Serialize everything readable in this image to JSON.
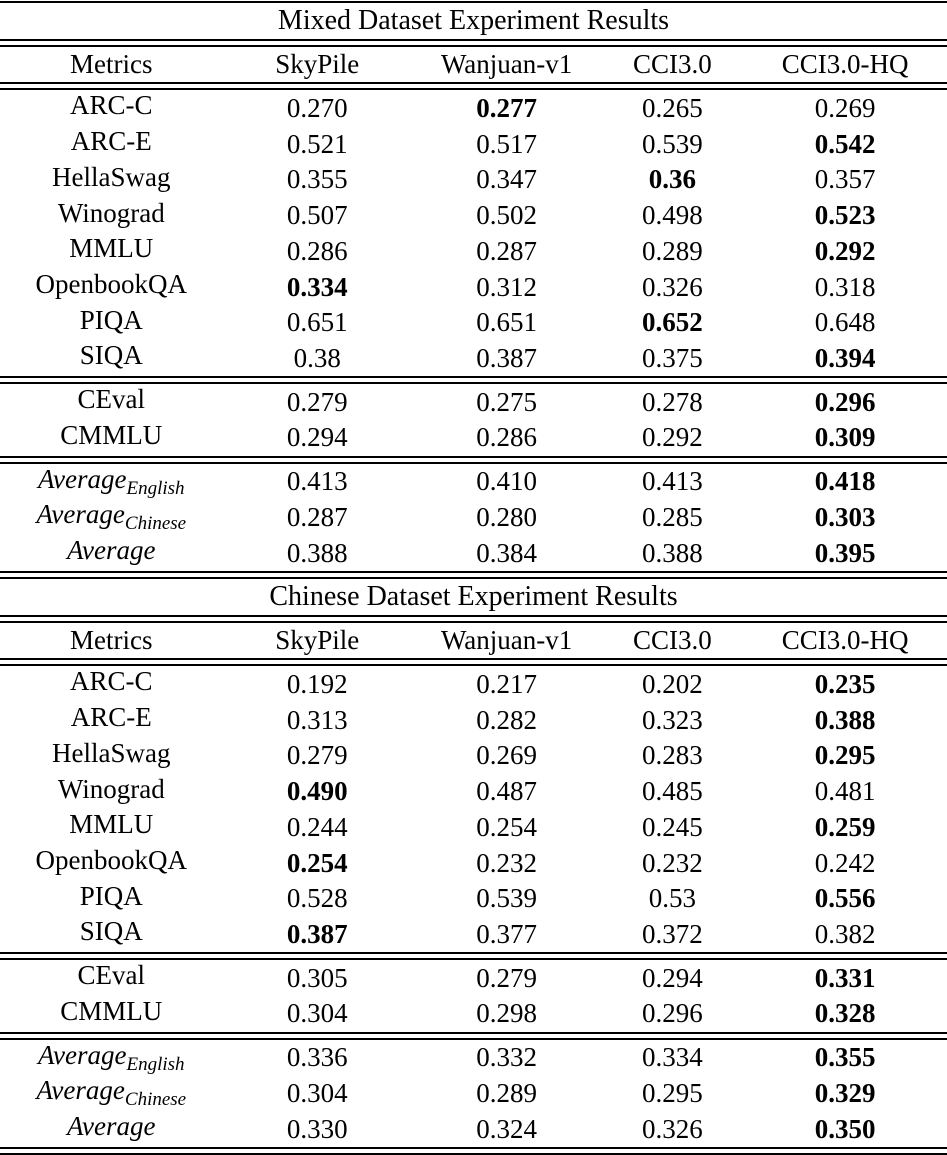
{
  "colors": {
    "text": "#000000",
    "background": "#ffffff",
    "rule": "#000000"
  },
  "tables": [
    {
      "title": "Mixed Dataset Experiment Results",
      "columns": [
        "Metrics",
        "SkyPile",
        "Wanjuan-v1",
        "CCI3.0",
        "CCI3.0-HQ"
      ],
      "groups": [
        {
          "rows": [
            {
              "metric": "ARC-C",
              "values": [
                "0.270",
                "0.277",
                "0.265",
                "0.269"
              ],
              "bold": 1
            },
            {
              "metric": "ARC-E",
              "values": [
                "0.521",
                "0.517",
                "0.539",
                "0.542"
              ],
              "bold": 3
            },
            {
              "metric": "HellaSwag",
              "values": [
                "0.355",
                "0.347",
                "0.36",
                "0.357"
              ],
              "bold": 2
            },
            {
              "metric": "Winograd",
              "values": [
                "0.507",
                "0.502",
                "0.498",
                "0.523"
              ],
              "bold": 3
            },
            {
              "metric": "MMLU",
              "values": [
                "0.286",
                "0.287",
                "0.289",
                "0.292"
              ],
              "bold": 3
            },
            {
              "metric": "OpenbookQA",
              "values": [
                "0.334",
                "0.312",
                "0.326",
                "0.318"
              ],
              "bold": 0
            },
            {
              "metric": "PIQA",
              "values": [
                "0.651",
                "0.651",
                "0.652",
                "0.648"
              ],
              "bold": 2
            },
            {
              "metric": "SIQA",
              "values": [
                "0.38",
                "0.387",
                "0.375",
                "0.394"
              ],
              "bold": 3
            }
          ]
        },
        {
          "rows": [
            {
              "metric": "CEval",
              "values": [
                "0.279",
                "0.275",
                "0.278",
                "0.296"
              ],
              "bold": 3
            },
            {
              "metric": "CMMLU",
              "values": [
                "0.294",
                "0.286",
                "0.292",
                "0.309"
              ],
              "bold": 3
            }
          ]
        },
        {
          "rows": [
            {
              "metric": "Average",
              "subscript": "English",
              "italic": true,
              "values": [
                "0.413",
                "0.410",
                "0.413",
                "0.418"
              ],
              "bold": 3
            },
            {
              "metric": "Average",
              "subscript": "Chinese",
              "italic": true,
              "values": [
                "0.287",
                "0.280",
                "0.285",
                "0.303"
              ],
              "bold": 3
            },
            {
              "metric": "Average",
              "italic": true,
              "values": [
                "0.388",
                "0.384",
                "0.388",
                "0.395"
              ],
              "bold": 3
            }
          ]
        }
      ]
    },
    {
      "title": "Chinese Dataset Experiment Results",
      "columns": [
        "Metrics",
        "SkyPile",
        "Wanjuan-v1",
        "CCI3.0",
        "CCI3.0-HQ"
      ],
      "groups": [
        {
          "rows": [
            {
              "metric": "ARC-C",
              "values": [
                "0.192",
                "0.217",
                "0.202",
                "0.235"
              ],
              "bold": 3
            },
            {
              "metric": "ARC-E",
              "values": [
                "0.313",
                "0.282",
                "0.323",
                "0.388"
              ],
              "bold": 3
            },
            {
              "metric": "HellaSwag",
              "values": [
                "0.279",
                "0.269",
                "0.283",
                "0.295"
              ],
              "bold": 3
            },
            {
              "metric": "Winograd",
              "values": [
                "0.490",
                "0.487",
                "0.485",
                "0.481"
              ],
              "bold": 0
            },
            {
              "metric": "MMLU",
              "values": [
                "0.244",
                "0.254",
                "0.245",
                "0.259"
              ],
              "bold": 3
            },
            {
              "metric": "OpenbookQA",
              "values": [
                "0.254",
                "0.232",
                "0.232",
                "0.242"
              ],
              "bold": 0
            },
            {
              "metric": "PIQA",
              "values": [
                "0.528",
                "0.539",
                "0.53",
                "0.556"
              ],
              "bold": 3
            },
            {
              "metric": "SIQA",
              "values": [
                "0.387",
                "0.377",
                "0.372",
                "0.382"
              ],
              "bold": 0
            }
          ]
        },
        {
          "rows": [
            {
              "metric": "CEval",
              "values": [
                "0.305",
                "0.279",
                "0.294",
                "0.331"
              ],
              "bold": 3
            },
            {
              "metric": "CMMLU",
              "values": [
                "0.304",
                "0.298",
                "0.296",
                "0.328"
              ],
              "bold": 3
            }
          ]
        },
        {
          "rows": [
            {
              "metric": "Average",
              "subscript": "English",
              "italic": true,
              "values": [
                "0.336",
                "0.332",
                "0.334",
                "0.355"
              ],
              "bold": 3
            },
            {
              "metric": "Average",
              "subscript": "Chinese",
              "italic": true,
              "values": [
                "0.304",
                "0.289",
                "0.295",
                "0.329"
              ],
              "bold": 3
            },
            {
              "metric": "Average",
              "italic": true,
              "values": [
                "0.330",
                "0.324",
                "0.326",
                "0.350"
              ],
              "bold": 3
            }
          ]
        }
      ]
    }
  ]
}
